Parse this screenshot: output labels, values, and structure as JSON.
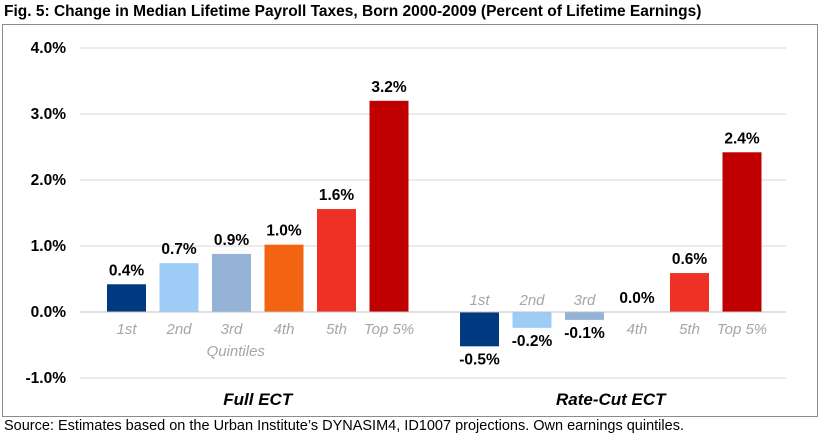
{
  "chart_data": {
    "type": "bar",
    "title": "Fig. 5: Change in Median Lifetime Payroll Taxes, Born 2000-2009 (Percent of Lifetime Earnings)",
    "source": "Source: Estimates based on the Urban Institute’s DYNASIM4, ID1007 projections. Own earnings quintiles.",
    "ylim": [
      -1.0,
      4.0
    ],
    "yticks": [
      -1.0,
      0.0,
      1.0,
      2.0,
      3.0,
      4.0
    ],
    "ytick_labels": [
      "-1.0%",
      "0.0%",
      "1.0%",
      "2.0%",
      "3.0%",
      "4.0%"
    ],
    "grid": true,
    "categories": [
      "1st",
      "2nd",
      "3rd",
      "4th",
      "5th",
      "Top 5%"
    ],
    "axis_note": "Quintiles",
    "colors": [
      "#003a80",
      "#9dcdf7",
      "#95b3d7",
      "#f26411",
      "#ee3124",
      "#c00000"
    ],
    "groups": [
      {
        "name": "Full ECT",
        "values": [
          0.42,
          0.74,
          0.88,
          1.02,
          1.56,
          3.2
        ],
        "labels": [
          "0.4%",
          "0.7%",
          "0.9%",
          "1.0%",
          "1.6%",
          "3.2%"
        ]
      },
      {
        "name": "Rate-Cut ECT",
        "values": [
          -0.52,
          -0.24,
          -0.12,
          0.0,
          0.59,
          2.42
        ],
        "labels": [
          "-0.5%",
          "-0.2%",
          "-0.1%",
          "0.0%",
          "0.6%",
          "2.4%"
        ]
      }
    ]
  }
}
